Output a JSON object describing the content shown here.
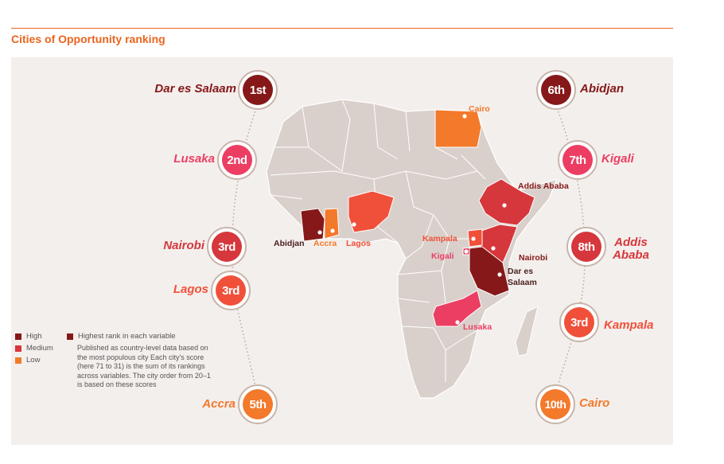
{
  "title": "Cities of Opportunity ranking",
  "colors": {
    "high": "#861819",
    "medium": "#d6373c",
    "low": "#f3792b",
    "pink": "#ec3e63",
    "coral": "#f0503a",
    "land": "#d9d0cb"
  },
  "rankings": [
    {
      "city": "Dar es Salaam",
      "rank": "1st",
      "color": "#861819"
    },
    {
      "city": "Lusaka",
      "rank": "2nd",
      "color": "#ec3e63"
    },
    {
      "city": "Nairobi",
      "rank": "3rd",
      "color": "#d6373c"
    },
    {
      "city": "Lagos",
      "rank": "3rd",
      "color": "#f0503a"
    },
    {
      "city": "Accra",
      "rank": "5th",
      "color": "#f3792b"
    },
    {
      "city": "Abidjan",
      "rank": "6th",
      "color": "#861819"
    },
    {
      "city": "Kigali",
      "rank": "7th",
      "color": "#ec3e63"
    },
    {
      "city": "Addis Ababa",
      "rank": "8th",
      "color": "#d6373c"
    },
    {
      "city": "Kampala",
      "rank": "3rd",
      "color": "#f0503a"
    },
    {
      "city": "Cairo",
      "rank": "10th",
      "color": "#f3792b"
    }
  ],
  "map_labels": {
    "cairo": "Cairo",
    "addis": "Addis Ababa",
    "abidjan": "Abidjan",
    "accra": "Accra",
    "lagos": "Lagos",
    "kampala": "Kampala",
    "kigali": "Kigali",
    "nairobi": "Nairobi",
    "dar1": "Dar es",
    "dar2": "Salaam",
    "lusaka": "Lusaka"
  },
  "legend": {
    "high": "High",
    "medium": "Medium",
    "low": "Low",
    "highest": "Highest rank in each variable",
    "note": "Published as country-level data based on the most populous city Each city's score (here 71 to 31) is the sum of its rankings across variables. The city order from 20–1 is based on these scores"
  }
}
